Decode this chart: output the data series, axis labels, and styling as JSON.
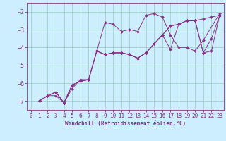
{
  "xlabel": "Windchill (Refroidissement éolien,°C)",
  "background_color": "#cceeff",
  "grid_color": "#99ccbb",
  "line_color": "#883388",
  "xlim": [
    -0.5,
    23.5
  ],
  "ylim": [
    -7.5,
    -1.5
  ],
  "yticks": [
    -7,
    -6,
    -5,
    -4,
    -3,
    -2
  ],
  "xticks": [
    0,
    1,
    2,
    3,
    4,
    5,
    6,
    7,
    8,
    9,
    10,
    11,
    12,
    13,
    14,
    15,
    16,
    17,
    18,
    19,
    20,
    21,
    22,
    23
  ],
  "series": [
    {
      "x": [
        1,
        2,
        3,
        4,
        5,
        6,
        7,
        8,
        9,
        10,
        11,
        12,
        13,
        14,
        15,
        16,
        17,
        18,
        19,
        20,
        21,
        23
      ],
      "y": [
        -7.0,
        -6.7,
        -6.7,
        -7.1,
        -6.3,
        -5.8,
        -5.8,
        -4.2,
        -2.6,
        -2.7,
        -3.1,
        -3.0,
        -3.1,
        -2.2,
        -2.1,
        -2.3,
        -3.3,
        -4.0,
        -4.0,
        -4.2,
        -3.6,
        -2.1
      ]
    },
    {
      "x": [
        1,
        2,
        3,
        4,
        5,
        6,
        7,
        8,
        9,
        10,
        11,
        12,
        13,
        14,
        15,
        16,
        17,
        18,
        19,
        20,
        21,
        22,
        23
      ],
      "y": [
        -7.0,
        -6.7,
        -6.5,
        -7.1,
        -6.1,
        -5.9,
        -5.8,
        -4.2,
        -4.4,
        -4.3,
        -4.3,
        -4.4,
        -4.6,
        -4.3,
        -3.8,
        -3.3,
        -2.8,
        -2.7,
        -2.5,
        -2.5,
        -2.4,
        -2.3,
        -2.2
      ]
    },
    {
      "x": [
        1,
        2,
        3,
        4,
        5,
        6,
        7,
        8,
        9,
        10,
        11,
        12,
        13,
        14,
        15,
        16,
        17,
        18,
        19,
        20,
        21,
        22,
        23
      ],
      "y": [
        -7.0,
        -6.7,
        -6.5,
        -7.1,
        -6.1,
        -5.9,
        -5.8,
        -4.2,
        -4.4,
        -4.3,
        -4.3,
        -4.4,
        -4.6,
        -4.3,
        -3.8,
        -3.3,
        -2.8,
        -2.7,
        -2.5,
        -2.5,
        -4.3,
        -4.2,
        -2.2
      ]
    },
    {
      "x": [
        1,
        2,
        3,
        4,
        5,
        6,
        7,
        8,
        9,
        10,
        11,
        12,
        13,
        14,
        15,
        16,
        17,
        18,
        19,
        20,
        21,
        22,
        23
      ],
      "y": [
        -7.0,
        -6.7,
        -6.5,
        -7.1,
        -6.1,
        -5.9,
        -5.8,
        -4.2,
        -4.4,
        -4.3,
        -4.3,
        -4.4,
        -4.6,
        -4.3,
        -3.8,
        -3.3,
        -4.1,
        -2.7,
        -2.5,
        -2.5,
        -4.3,
        -3.5,
        -2.2
      ]
    }
  ],
  "tickfont": 5.5,
  "xlabel_fontsize": 5.5
}
